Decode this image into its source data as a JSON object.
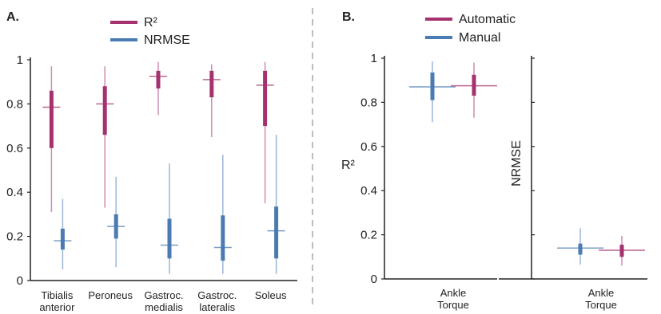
{
  "colors": {
    "r2": "#a5326f",
    "nrmse": "#4a7bb3",
    "automatic": "#a5326f",
    "manual": "#4a7bb3",
    "axis": "#222222",
    "divider": "#bdbdbd"
  },
  "chart_data": [
    {
      "type": "box",
      "panel": "A.",
      "legend": [
        "R²",
        "NRMSE"
      ],
      "categories": [
        "Tibialis\nanterior",
        "Peroneus",
        "Gastroc.\nmedialis",
        "Gastroc.\nlateralis",
        "Soleus"
      ],
      "yticks": [
        "0",
        "0.2",
        "0.4",
        "0.6",
        "0.8",
        "1"
      ],
      "ylim": [
        0,
        1
      ],
      "series": [
        {
          "name": "R²",
          "boxes": [
            {
              "min": 0.31,
              "q1": 0.6,
              "median": 0.785,
              "q3": 0.86,
              "max": 0.97
            },
            {
              "min": 0.33,
              "q1": 0.66,
              "median": 0.8,
              "q3": 0.88,
              "max": 0.97
            },
            {
              "min": 0.75,
              "q1": 0.87,
              "median": 0.925,
              "q3": 0.95,
              "max": 0.99
            },
            {
              "min": 0.65,
              "q1": 0.83,
              "median": 0.91,
              "q3": 0.95,
              "max": 0.98
            },
            {
              "min": 0.35,
              "q1": 0.7,
              "median": 0.885,
              "q3": 0.95,
              "max": 0.99
            }
          ]
        },
        {
          "name": "NRMSE",
          "boxes": [
            {
              "min": 0.05,
              "q1": 0.14,
              "median": 0.18,
              "q3": 0.235,
              "max": 0.37
            },
            {
              "min": 0.06,
              "q1": 0.19,
              "median": 0.245,
              "q3": 0.3,
              "max": 0.47
            },
            {
              "min": 0.03,
              "q1": 0.1,
              "median": 0.16,
              "q3": 0.28,
              "max": 0.53
            },
            {
              "min": 0.03,
              "q1": 0.09,
              "median": 0.15,
              "q3": 0.295,
              "max": 0.57
            },
            {
              "min": 0.03,
              "q1": 0.1,
              "median": 0.225,
              "q3": 0.335,
              "max": 0.66
            }
          ]
        }
      ]
    },
    {
      "type": "box",
      "panel": "B.",
      "legend": [
        "Automatic",
        "Manual"
      ],
      "ylabel": "R²",
      "ylabel_right": "NRMSE",
      "yticks": [
        "0",
        "0.2",
        "0.4",
        "0.6",
        "0.8",
        "1"
      ],
      "ylim": [
        0,
        1
      ],
      "groups": [
        {
          "category": "Ankle\nTorque",
          "metric": "R²",
          "series": [
            {
              "name": "Manual",
              "box": {
                "min": 0.71,
                "q1": 0.81,
                "median": 0.87,
                "q3": 0.935,
                "max": 0.985
              }
            },
            {
              "name": "Automatic",
              "box": {
                "min": 0.73,
                "q1": 0.83,
                "median": 0.875,
                "q3": 0.925,
                "max": 0.98
              }
            }
          ]
        },
        {
          "category": "Ankle\nTorque",
          "metric": "NRMSE",
          "series": [
            {
              "name": "Manual",
              "box": {
                "min": 0.065,
                "q1": 0.11,
                "median": 0.14,
                "q3": 0.16,
                "max": 0.23
              }
            },
            {
              "name": "Automatic",
              "box": {
                "min": 0.06,
                "q1": 0.1,
                "median": 0.13,
                "q3": 0.155,
                "max": 0.195
              }
            }
          ]
        }
      ]
    }
  ]
}
